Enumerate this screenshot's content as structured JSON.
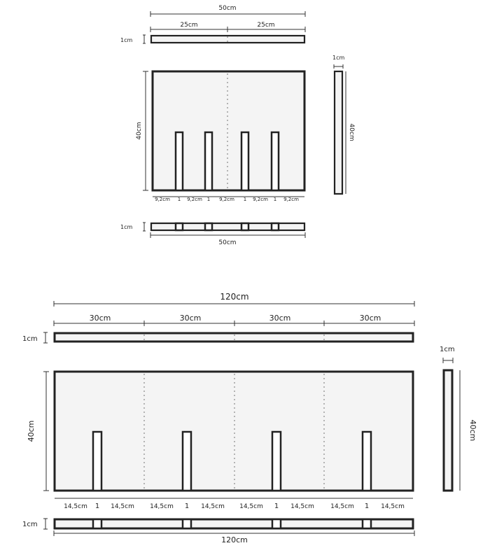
{
  "small": {
    "top_width": "50cm",
    "half_left": "25cm",
    "half_right": "25cm",
    "thickness_top": "1cm",
    "side_thickness": "1cm",
    "height_left": "40cm",
    "height_right": "40cm",
    "gap_1": "9,2cm",
    "slot_1": "1",
    "gap_2": "9,2cm",
    "slot_2": "1",
    "gap_3": "9,2cm",
    "slot_3": "1",
    "gap_4": "9,2cm",
    "slot_4": "1",
    "gap_5": "9,2cm",
    "thickness_bottom": "1cm",
    "bottom_width": "50cm"
  },
  "large": {
    "top_width": "120cm",
    "quarter_1": "30cm",
    "quarter_2": "30cm",
    "quarter_3": "30cm",
    "quarter_4": "30cm",
    "thickness_top": "1cm",
    "side_thickness": "1cm",
    "height_left": "40cm",
    "height_right": "40cm",
    "gap_1": "14,5cm",
    "slot_1": "1",
    "gap_2": "14,5cm",
    "gap_3": "14,5cm",
    "slot_2": "1",
    "gap_4": "14,5cm",
    "gap_5": "14,5cm",
    "slot_3": "1",
    "gap_6": "14,5cm",
    "gap_7": "14,5cm",
    "slot_4": "1",
    "gap_8": "14,5cm",
    "thickness_bottom": "1cm",
    "bottom_width": "120cm"
  }
}
